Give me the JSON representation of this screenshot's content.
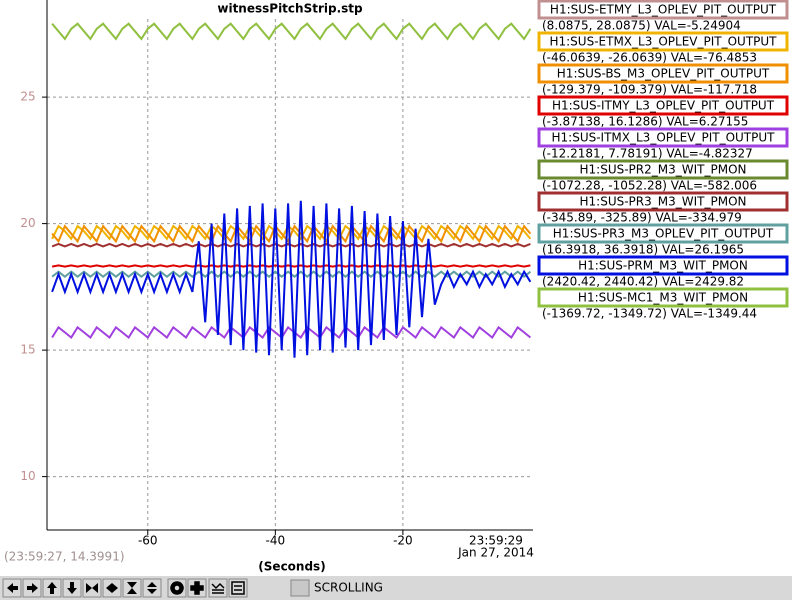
{
  "chart_data": {
    "type": "line",
    "title": "witnessPitchStrip.stp",
    "x_label": "(Seconds)",
    "time_label": [
      "23:59:29",
      "Jan 27, 2014"
    ],
    "cursor_readout": "(23:59:27, 14.3991)",
    "mode": "SCROLLING",
    "xlim": [
      -75.8,
      0.4
    ],
    "ylim": [
      8.0875,
      28.0875
    ],
    "xticks": [
      -60,
      -40,
      -20
    ],
    "yticks": [
      10,
      15,
      20,
      25
    ],
    "grid": true,
    "x": [
      -75,
      -74,
      -73,
      -72,
      -71,
      -70,
      -69,
      -68,
      -67,
      -66,
      -65,
      -64,
      -63,
      -62,
      -61,
      -60,
      -59,
      -58,
      -57,
      -56,
      -55,
      -54,
      -53,
      -52,
      -51,
      -50,
      -49,
      -48,
      -47,
      -46,
      -45,
      -44,
      -43,
      -42,
      -41,
      -40,
      -39,
      -38,
      -37,
      -36,
      -35,
      -34,
      -33,
      -32,
      -31,
      -30,
      -29,
      -28,
      -27,
      -26,
      -25,
      -24,
      -23,
      -22,
      -21,
      -20,
      -19,
      -18,
      -17,
      -16,
      -15,
      -14,
      -13,
      -12,
      -11,
      -10,
      -9,
      -8,
      -7,
      -6,
      -5,
      -4,
      -3,
      -2,
      -1,
      0
    ],
    "series": [
      {
        "name": "H1:SUS-ETMY_L3_OPLEV_PIT_OUTPUT",
        "color": "#c09090",
        "label": "(8.0875, 28.0875) VAL=-5.24904"
      },
      {
        "name": "H1:SUS-ETMX_L3_OPLEV_PIT_OUTPUT",
        "color": "#f0b400",
        "label": "(-46.0639, -26.0639) VAL=-76.4853",
        "values": [
          19.4,
          19.9,
          19.7,
          19.4,
          19.9,
          19.7,
          19.4,
          19.9,
          19.7,
          19.4,
          19.9,
          19.7,
          19.4,
          19.9,
          19.7,
          19.4,
          19.9,
          19.7,
          19.4,
          19.9,
          19.7,
          19.4,
          19.9,
          19.7,
          19.4,
          19.9,
          19.7,
          19.4,
          19.9,
          19.7,
          19.4,
          19.9,
          19.7,
          19.4,
          19.9,
          19.7,
          19.4,
          19.9,
          19.7,
          19.4,
          19.9,
          19.7,
          19.4,
          19.9,
          19.7,
          19.4,
          19.9,
          19.7,
          19.4,
          19.9,
          19.7,
          19.4,
          19.9,
          19.7,
          19.4,
          19.9,
          19.7,
          19.4,
          19.9,
          19.7,
          19.4,
          19.9,
          19.7,
          19.4,
          19.9,
          19.7,
          19.4,
          19.9,
          19.7,
          19.4,
          19.9,
          19.7,
          19.4,
          19.9,
          19.7,
          19.4
        ]
      },
      {
        "name": "H1:SUS-BS_M3_OPLEV_PIT_OUTPUT",
        "color": "#f09000",
        "label": "(-129.379, -109.379) VAL=-117.718",
        "values": [
          19.6,
          19.3,
          19.9,
          19.6,
          19.3,
          19.9,
          19.6,
          19.3,
          19.9,
          19.6,
          19.3,
          19.9,
          19.6,
          19.3,
          19.9,
          19.6,
          19.3,
          19.9,
          19.6,
          19.3,
          19.9,
          19.6,
          19.3,
          19.9,
          19.6,
          19.3,
          19.9,
          19.6,
          19.3,
          19.9,
          19.6,
          19.3,
          19.9,
          19.6,
          19.3,
          19.9,
          19.6,
          19.3,
          19.9,
          19.6,
          19.3,
          19.9,
          19.6,
          19.3,
          19.9,
          19.6,
          19.3,
          19.9,
          19.6,
          19.3,
          19.9,
          19.6,
          19.3,
          19.9,
          19.6,
          19.3,
          19.9,
          19.6,
          19.3,
          19.9,
          19.6,
          19.3,
          19.9,
          19.6,
          19.3,
          19.9,
          19.6,
          19.3,
          19.9,
          19.6,
          19.3,
          19.9,
          19.6,
          19.3,
          19.9,
          19.6
        ]
      },
      {
        "name": "H1:SUS-ITMY_L3_OPLEV_PIT_OUTPUT",
        "color": "#e00000",
        "label": "(-3.87138, 16.1286) VAL=6.27155",
        "values": [
          18.3,
          18.35,
          18.3,
          18.35,
          18.3,
          18.35,
          18.3,
          18.35,
          18.3,
          18.35,
          18.3,
          18.35,
          18.3,
          18.35,
          18.3,
          18.35,
          18.3,
          18.35,
          18.3,
          18.35,
          18.3,
          18.35,
          18.3,
          18.35,
          18.3,
          18.35,
          18.3,
          18.35,
          18.3,
          18.35,
          18.3,
          18.35,
          18.3,
          18.35,
          18.3,
          18.35,
          18.3,
          18.35,
          18.3,
          18.35,
          18.3,
          18.35,
          18.3,
          18.35,
          18.3,
          18.35,
          18.3,
          18.35,
          18.3,
          18.35,
          18.3,
          18.35,
          18.3,
          18.35,
          18.3,
          18.35,
          18.3,
          18.35,
          18.3,
          18.35,
          18.3,
          18.35,
          18.3,
          18.35,
          18.3,
          18.35,
          18.3,
          18.35,
          18.3,
          18.35,
          18.3,
          18.35,
          18.3,
          18.35,
          18.3,
          18.35
        ]
      },
      {
        "name": "H1:SUS-ITMX_L3_OPLEV_PIT_OUTPUT",
        "color": "#a040e0",
        "label": "(-12.2181, 7.78191) VAL=-4.82327",
        "values": [
          15.5,
          15.9,
          15.7,
          15.5,
          15.9,
          15.7,
          15.5,
          15.9,
          15.7,
          15.5,
          15.9,
          15.7,
          15.5,
          15.9,
          15.7,
          15.5,
          15.9,
          15.7,
          15.5,
          15.9,
          15.7,
          15.5,
          15.9,
          15.7,
          15.5,
          15.9,
          15.7,
          15.5,
          15.9,
          15.7,
          15.5,
          15.9,
          15.7,
          15.5,
          15.9,
          15.7,
          15.5,
          15.9,
          15.7,
          15.5,
          15.9,
          15.7,
          15.5,
          15.9,
          15.7,
          15.5,
          15.9,
          15.7,
          15.5,
          15.9,
          15.7,
          15.5,
          15.9,
          15.7,
          15.5,
          15.9,
          15.7,
          15.5,
          15.9,
          15.7,
          15.5,
          15.9,
          15.7,
          15.5,
          15.9,
          15.7,
          15.5,
          15.9,
          15.7,
          15.5,
          15.9,
          15.7,
          15.5,
          15.9,
          15.7,
          15.5
        ]
      },
      {
        "name": "H1:SUS-PR2_M3_WIT_PMON",
        "color": "#6a8a30",
        "label": "(-1072.28, -1052.28) VAL=-582.006"
      },
      {
        "name": "H1:SUS-PR3_M3_WIT_PMON",
        "color": "#a03030",
        "label": "(-345.89, -325.89) VAL=-334.979",
        "values": [
          19.1,
          19.2,
          19.1,
          19.2,
          19.1,
          19.2,
          19.1,
          19.2,
          19.1,
          19.2,
          19.1,
          19.2,
          19.1,
          19.2,
          19.1,
          19.2,
          19.1,
          19.2,
          19.1,
          19.2,
          19.1,
          19.2,
          19.1,
          19.2,
          19.1,
          19.2,
          19.1,
          19.2,
          19.1,
          19.2,
          19.1,
          19.2,
          19.1,
          19.2,
          19.1,
          19.2,
          19.1,
          19.2,
          19.1,
          19.2,
          19.1,
          19.2,
          19.1,
          19.2,
          19.1,
          19.2,
          19.1,
          19.2,
          19.1,
          19.2,
          19.1,
          19.2,
          19.1,
          19.2,
          19.1,
          19.2,
          19.1,
          19.2,
          19.1,
          19.2,
          19.1,
          19.2,
          19.1,
          19.2,
          19.1,
          19.2,
          19.1,
          19.2,
          19.1,
          19.2,
          19.1,
          19.2,
          19.1,
          19.2,
          19.1,
          19.2
        ]
      },
      {
        "name": "H1:SUS-PR3_M3_OPLEV_PIT_OUTPUT",
        "color": "#60a0a0",
        "label": "(16.3918, 36.3918) VAL=26.1965",
        "values": [
          17.9,
          18.1,
          17.9,
          18.1,
          17.9,
          18.1,
          17.9,
          18.1,
          17.9,
          18.1,
          17.9,
          18.1,
          17.9,
          18.1,
          17.9,
          18.1,
          17.9,
          18.1,
          17.9,
          18.1,
          17.9,
          18.1,
          17.9,
          18.1,
          17.9,
          18.1,
          17.9,
          18.1,
          17.9,
          18.1,
          17.9,
          18.1,
          17.9,
          18.1,
          17.9,
          18.1,
          17.9,
          18.1,
          17.9,
          18.1,
          17.9,
          18.1,
          17.9,
          18.1,
          17.9,
          18.1,
          17.9,
          18.1,
          17.9,
          18.1,
          17.9,
          18.1,
          17.9,
          18.1,
          17.9,
          18.1,
          17.9,
          18.1,
          17.9,
          18.1,
          17.9,
          18.1,
          17.9,
          18.1,
          17.9,
          18.1,
          17.9,
          18.1,
          17.9,
          18.1,
          17.9,
          18.1,
          17.9,
          18.1,
          17.9,
          18.1
        ]
      },
      {
        "name": "H1:SUS-PRM_M3_WIT_PMON",
        "color": "#0010e0",
        "label": "(2420.42, 2440.42) VAL=2429.82",
        "values": [
          17.3,
          18.0,
          17.3,
          18.0,
          17.3,
          18.0,
          17.3,
          18.0,
          17.3,
          18.0,
          17.3,
          18.0,
          17.3,
          18.0,
          17.3,
          18.0,
          17.3,
          18.0,
          17.3,
          18.0,
          17.3,
          18.0,
          17.3,
          19.3,
          16.1,
          20.0,
          15.6,
          20.4,
          15.2,
          20.6,
          15.0,
          20.7,
          14.9,
          20.8,
          14.8,
          20.6,
          15.0,
          20.8,
          14.7,
          20.9,
          14.8,
          20.7,
          15.0,
          20.8,
          14.9,
          20.6,
          15.1,
          20.7,
          15.0,
          20.5,
          15.2,
          20.4,
          15.4,
          20.3,
          15.6,
          20.1,
          15.9,
          19.8,
          16.3,
          19.4,
          16.8,
          17.6,
          18.1,
          17.5,
          18.0,
          17.6,
          18.1,
          17.5,
          18.0,
          17.6,
          18.1,
          17.5,
          18.0,
          17.6,
          18.1,
          17.7
        ]
      },
      {
        "name": "H1:SUS-MC1_M3_WIT_PMON",
        "color": "#90c040",
        "label": "(-1369.72, -1349.72) VAL=-1349.44",
        "values": [
          27.9,
          27.6,
          27.3,
          27.7,
          27.9,
          27.6,
          27.3,
          27.7,
          27.9,
          27.6,
          27.3,
          27.7,
          27.9,
          27.6,
          27.3,
          27.7,
          27.9,
          27.6,
          27.3,
          27.7,
          27.9,
          27.6,
          27.3,
          27.7,
          27.9,
          27.6,
          27.3,
          27.7,
          27.9,
          27.6,
          27.3,
          27.7,
          27.9,
          27.6,
          27.3,
          27.7,
          27.9,
          27.6,
          27.3,
          27.7,
          27.9,
          27.6,
          27.3,
          27.7,
          27.9,
          27.6,
          27.3,
          27.7,
          27.9,
          27.6,
          27.3,
          27.7,
          27.9,
          27.6,
          27.3,
          27.7,
          27.9,
          27.6,
          27.3,
          27.7,
          27.9,
          27.6,
          27.3,
          27.7,
          27.9,
          27.6,
          27.3,
          27.7,
          27.9,
          27.6,
          27.3,
          27.7,
          27.9,
          27.6,
          27.3,
          27.7
        ]
      }
    ]
  }
}
